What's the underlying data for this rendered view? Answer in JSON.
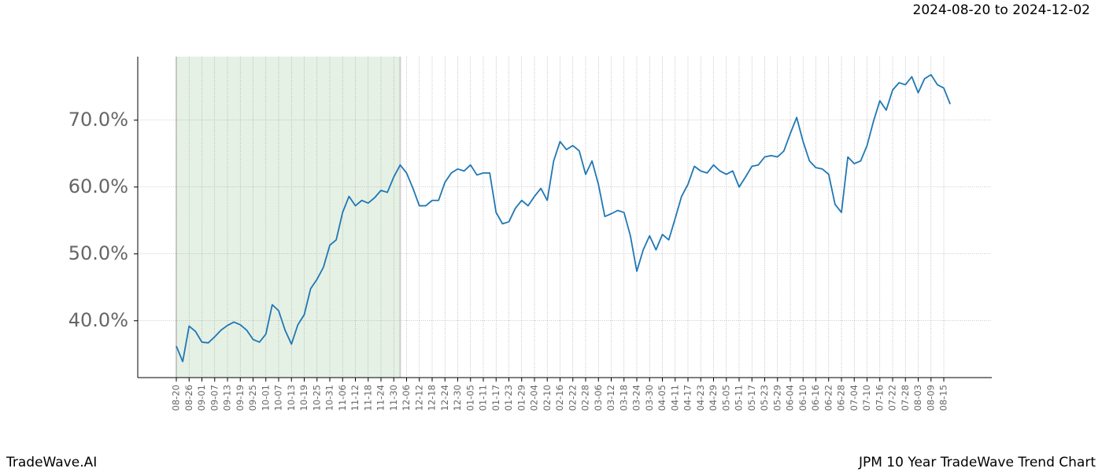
{
  "chart_data": {
    "type": "line",
    "title": "2024-08-20 to 2024-12-02",
    "footer_left": "TradeWave.AI",
    "footer_right": "JPM 10 Year TradeWave Trend Chart",
    "categories": [
      "08-20",
      null,
      "08-26",
      null,
      "09-01",
      null,
      "09-07",
      null,
      "09-13",
      null,
      "09-19",
      null,
      "09-25",
      null,
      "10-01",
      null,
      "10-07",
      null,
      "10-13",
      null,
      "10-19",
      null,
      "10-25",
      null,
      "10-31",
      null,
      "11-06",
      null,
      "11-12",
      null,
      "11-18",
      null,
      "11-24",
      null,
      "11-30",
      null,
      "12-06",
      null,
      "12-12",
      null,
      "12-18",
      null,
      "12-24",
      null,
      "12-30",
      null,
      "01-05",
      null,
      "01-11",
      null,
      "01-17",
      null,
      "01-23",
      null,
      "01-29",
      null,
      "02-04",
      null,
      "02-10",
      null,
      "02-16",
      null,
      "02-22",
      null,
      "02-28",
      null,
      "03-06",
      null,
      "03-12",
      null,
      "03-18",
      null,
      "03-24",
      null,
      "03-30",
      null,
      "04-05",
      null,
      "04-11",
      null,
      "04-17",
      null,
      "04-23",
      null,
      "04-29",
      null,
      "05-05",
      null,
      "05-11",
      null,
      "05-17",
      null,
      "05-23",
      null,
      "05-29",
      null,
      "06-04",
      null,
      "06-10",
      null,
      "06-16",
      null,
      "06-22",
      null,
      "06-28",
      null,
      "07-04",
      null,
      "07-10",
      null,
      "07-16",
      null,
      "07-22",
      null,
      "07-28",
      null,
      "08-03",
      null,
      "08-09",
      null,
      "08-15",
      null
    ],
    "values": [
      36.2,
      33.9,
      39.2,
      38.4,
      36.8,
      36.7,
      37.6,
      38.6,
      39.3,
      39.8,
      39.4,
      38.6,
      37.2,
      36.8,
      38.0,
      42.4,
      41.5,
      38.6,
      36.5,
      39.4,
      40.9,
      44.8,
      46.2,
      48.0,
      51.3,
      52.1,
      56.2,
      58.6,
      57.2,
      58.0,
      57.6,
      58.4,
      59.5,
      59.2,
      61.5,
      63.3,
      62.1,
      59.8,
      57.2,
      57.2,
      58.0,
      58.0,
      60.7,
      62.1,
      62.7,
      62.4,
      63.3,
      61.8,
      62.1,
      62.1,
      56.2,
      54.5,
      54.8,
      56.8,
      58.0,
      57.2,
      58.6,
      59.8,
      58.0,
      63.9,
      66.8,
      65.6,
      66.2,
      65.4,
      61.9,
      63.9,
      60.4,
      55.6,
      56.0,
      56.5,
      56.2,
      52.7,
      47.4,
      50.6,
      52.7,
      50.6,
      52.9,
      52.1,
      55.3,
      58.6,
      60.4,
      63.1,
      62.4,
      62.1,
      63.3,
      62.4,
      61.9,
      62.4,
      60.0,
      61.5,
      63.1,
      63.3,
      64.5,
      64.7,
      64.5,
      65.4,
      68.0,
      70.4,
      66.8,
      63.9,
      62.9,
      62.7,
      61.9,
      57.4,
      56.2,
      64.5,
      63.5,
      63.9,
      66.2,
      69.8,
      72.9,
      71.5,
      74.5,
      75.6,
      75.3,
      76.5,
      74.1,
      76.2,
      76.8,
      75.3,
      74.8,
      72.4
    ],
    "color": "#1f77b4",
    "shaded_categories": [
      0,
      35
    ],
    "shade_color": "#e5f1e5",
    "ylim": [
      31.5,
      79.5
    ],
    "yticks": [
      {
        "value": 40,
        "label": "40.0%"
      },
      {
        "value": 50,
        "label": "50.0%"
      },
      {
        "value": 60,
        "label": "60.0%"
      },
      {
        "value": 70,
        "label": "70.0%"
      }
    ],
    "grid": true
  }
}
